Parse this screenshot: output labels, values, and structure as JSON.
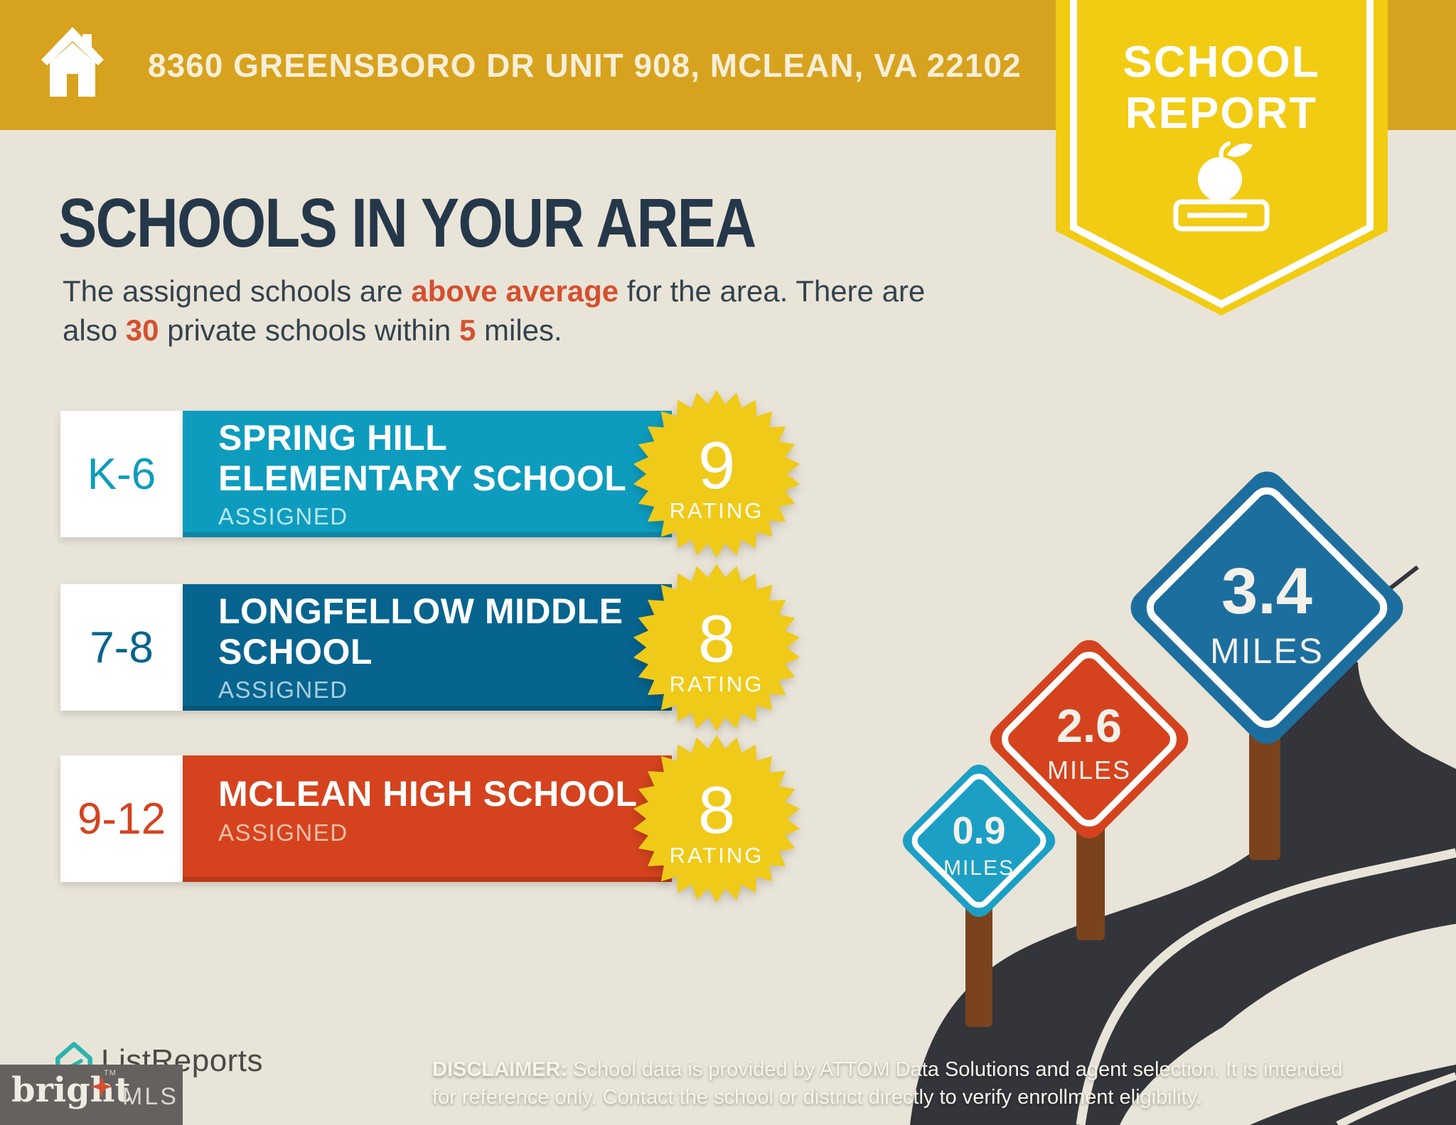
{
  "header": {
    "address": "8360 GREENSBORO DR UNIT 908, MCLEAN, VA 22102"
  },
  "ribbon": {
    "line1": "SCHOOL",
    "line2": "REPORT"
  },
  "page": {
    "title": "SCHOOLS IN YOUR AREA"
  },
  "subtitle": {
    "l1a": "The assigned schools are ",
    "l1b": "above average",
    "l1c": " for the area. There are",
    "l2a": "also ",
    "l2b": "30",
    "l2c": " private schools within ",
    "l2d": "5",
    "l2e": " miles."
  },
  "schools": [
    {
      "grades": "K-6",
      "name": "SPRING HILL ELEMENTARY SCHOOL",
      "status": "ASSIGNED",
      "rating": "9",
      "rating_label": "RATING"
    },
    {
      "grades": "7-8",
      "name": "LONGFELLOW MIDDLE SCHOOL",
      "status": "ASSIGNED",
      "rating": "8",
      "rating_label": "RATING"
    },
    {
      "grades": "9-12",
      "name": "MCLEAN HIGH SCHOOL",
      "status": "ASSIGNED",
      "rating": "8",
      "rating_label": "RATING"
    }
  ],
  "signs": [
    {
      "distance": "0.9",
      "unit": "MILES"
    },
    {
      "distance": "2.6",
      "unit": "MILES"
    },
    {
      "distance": "3.4",
      "unit": "MILES"
    }
  ],
  "footer": {
    "listreports": "ListReports",
    "bright": "bright",
    "bright_tm": "TM",
    "mls": "MLS",
    "disclaimer_label": "DISCLAIMER:",
    "disclaimer_line1": " School data is provided by ATTOM Data Solutions and agent selection. It is intended",
    "disclaimer_line2": "for reference only. Contact the school or district directly to verify enrollment eligibility."
  },
  "colors": {
    "header_gold": "#D7A21E",
    "ribbon_yellow": "#F2CB13",
    "background_cream": "#E9E4D8",
    "title_navy": "#25384A",
    "accent_red": "#D4502E",
    "row1_cyan": "#0E9CBE",
    "row2_blue": "#06648E",
    "row3_red": "#D4431E",
    "rating_yellow": "#F0CA19",
    "sign_cyan": "#1B9FC4",
    "sign_red": "#D4431E",
    "sign_blue": "#1C6E9E",
    "post_brown": "#7A431D",
    "road_dark": "#33353B",
    "brightmls_gray": "#64615E",
    "listreports_teal": "#2BB3AE"
  }
}
